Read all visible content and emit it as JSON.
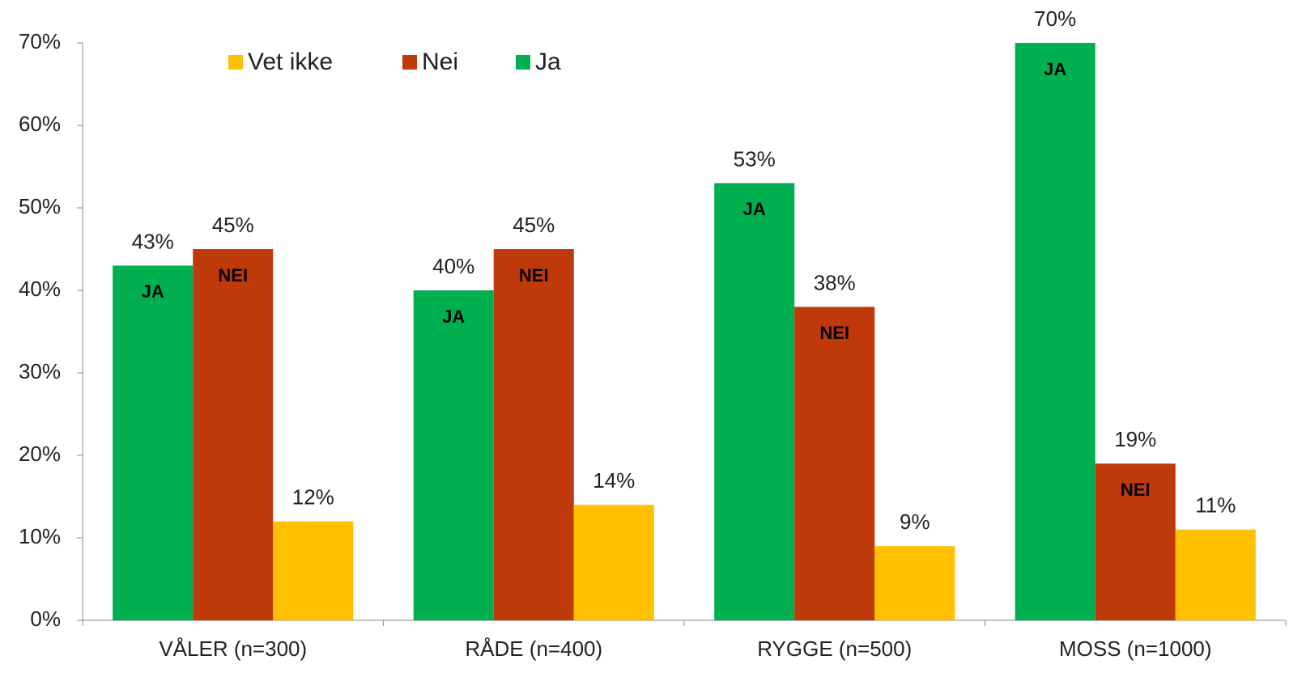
{
  "chart_data": {
    "type": "bar",
    "categories": [
      "VÅLER (n=300)",
      "RÅDE (n=400)",
      "RYGGE (n=500)",
      "MOSS (n=1000)"
    ],
    "series": [
      {
        "name": "Ja",
        "color": "#00b050",
        "inner_label": "JA",
        "values": [
          43,
          40,
          53,
          70
        ],
        "value_labels": [
          "43%",
          "40%",
          "53%",
          "70%"
        ]
      },
      {
        "name": "Nei",
        "color": "#c0390b",
        "inner_label": "NEI",
        "values": [
          45,
          45,
          38,
          19
        ],
        "value_labels": [
          "45%",
          "45%",
          "38%",
          "19%"
        ]
      },
      {
        "name": "Vet ikke",
        "color": "#ffc000",
        "values": [
          12,
          14,
          9,
          11
        ],
        "value_labels": [
          "12%",
          "14%",
          "9%",
          "11%"
        ]
      }
    ],
    "ylim": [
      0,
      70
    ],
    "yticks": [
      {
        "value": 0,
        "label": "0%"
      },
      {
        "value": 10,
        "label": "10%"
      },
      {
        "value": 20,
        "label": "20%"
      },
      {
        "value": 30,
        "label": "30%"
      },
      {
        "value": 40,
        "label": "40%"
      },
      {
        "value": 50,
        "label": "50%"
      },
      {
        "value": 60,
        "label": "60%"
      },
      {
        "value": 70,
        "label": "70%"
      }
    ],
    "legend": "top"
  }
}
